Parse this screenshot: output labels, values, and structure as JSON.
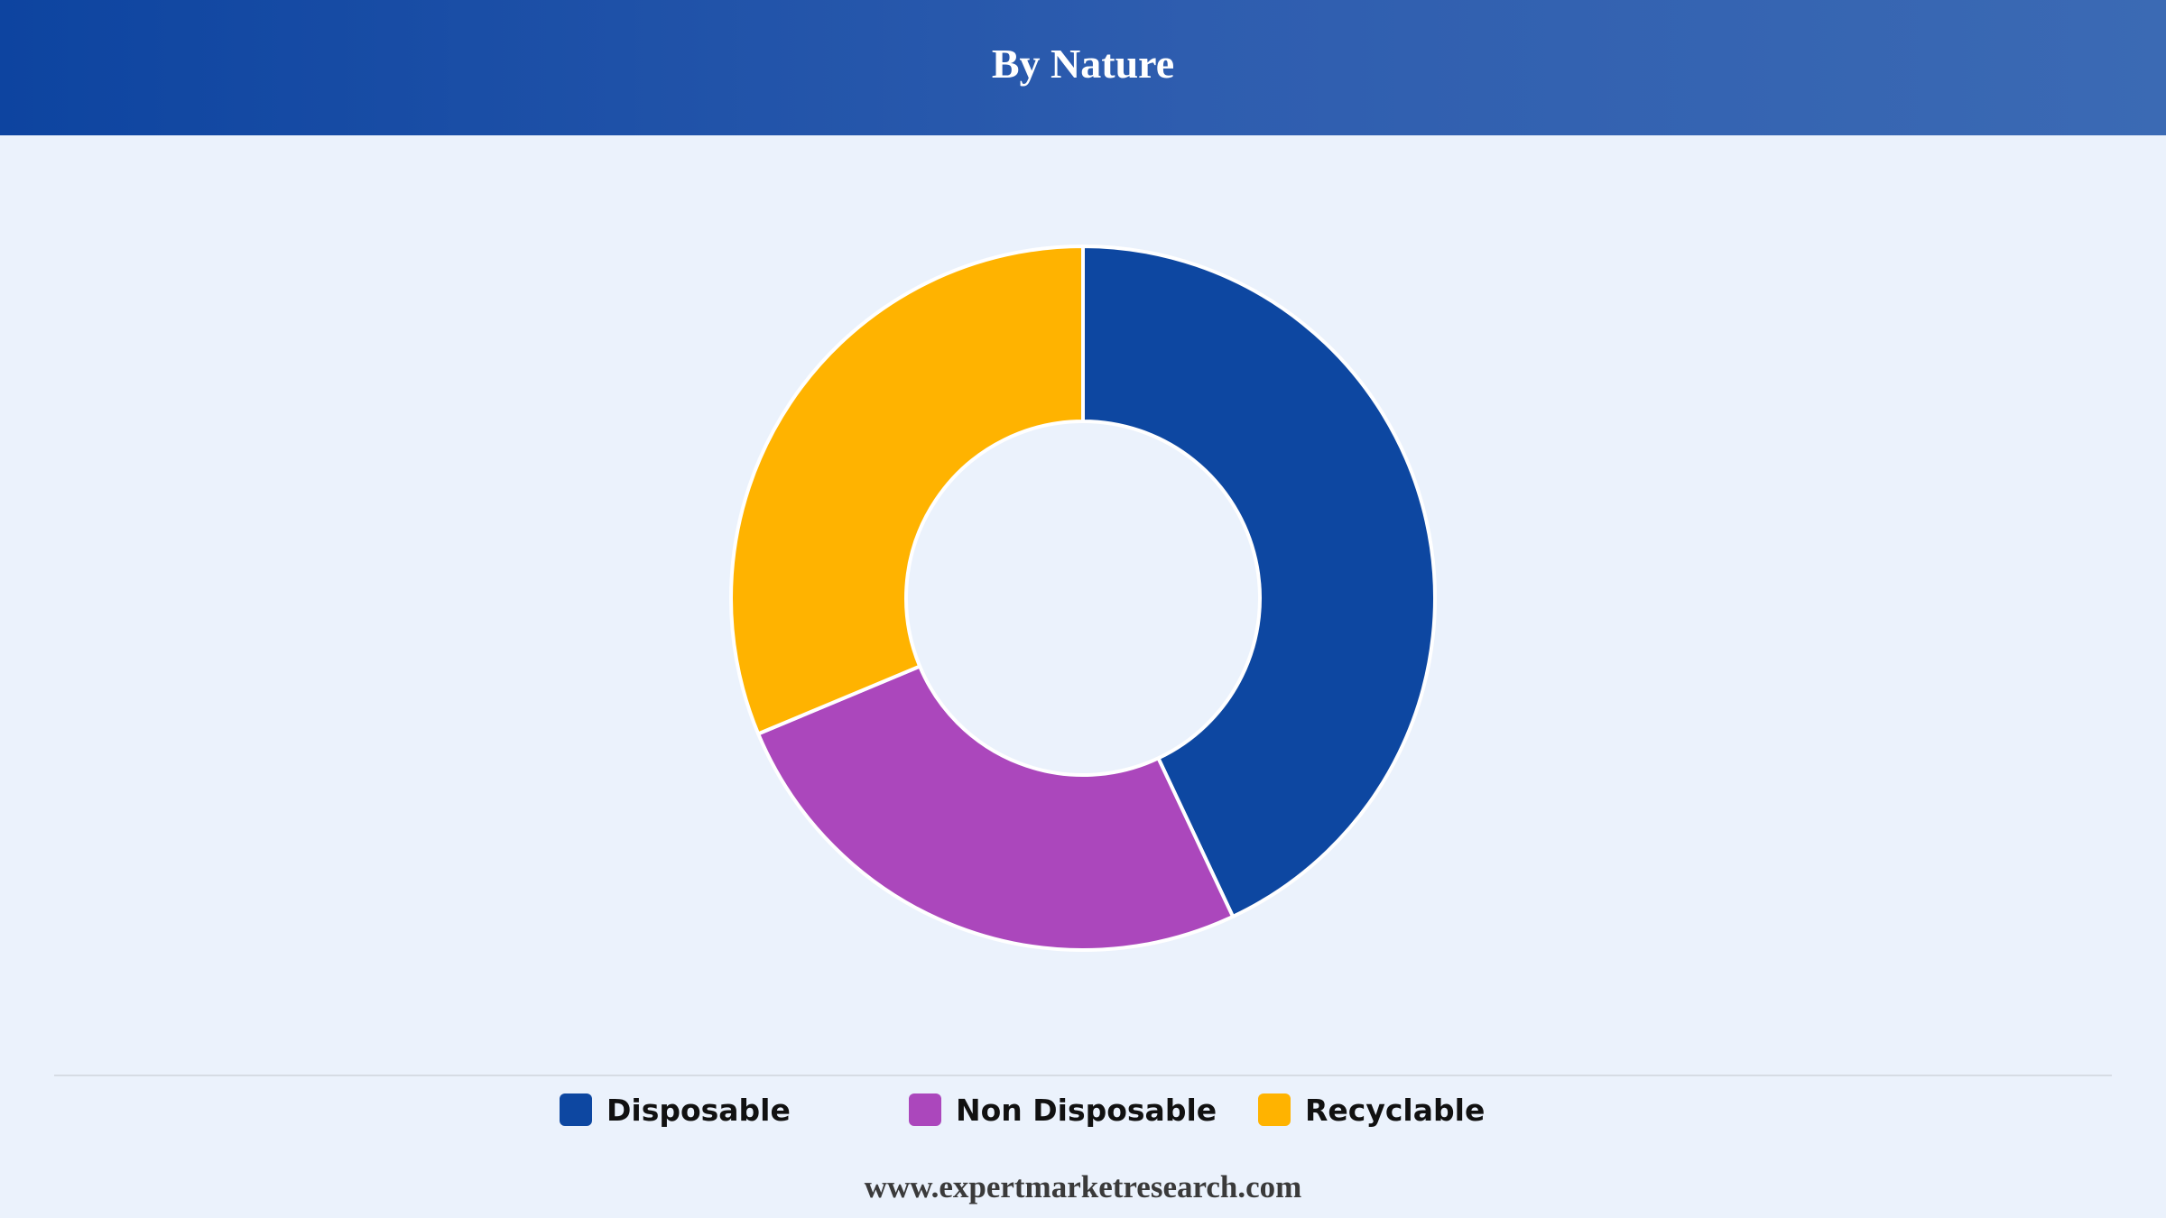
{
  "header": {
    "title": "By Nature"
  },
  "chart_data": {
    "type": "pie",
    "variant": "donut",
    "title": "By Nature",
    "categories": [
      "Disposable",
      "Non Disposable",
      "Recyclable"
    ],
    "values": [
      43.0,
      25.7,
      31.3
    ],
    "colors": [
      "#0D47A1",
      "#AB47BC",
      "#FFB300"
    ],
    "legend": "bottom"
  },
  "legend": {
    "items": [
      {
        "label": "Disposable",
        "color": "#0D47A1"
      },
      {
        "label": "Non Disposable",
        "color": "#AB47BC"
      },
      {
        "label": "Recyclable",
        "color": "#FFB300"
      }
    ]
  },
  "footer": {
    "url": "www.expertmarketresearch.com"
  }
}
